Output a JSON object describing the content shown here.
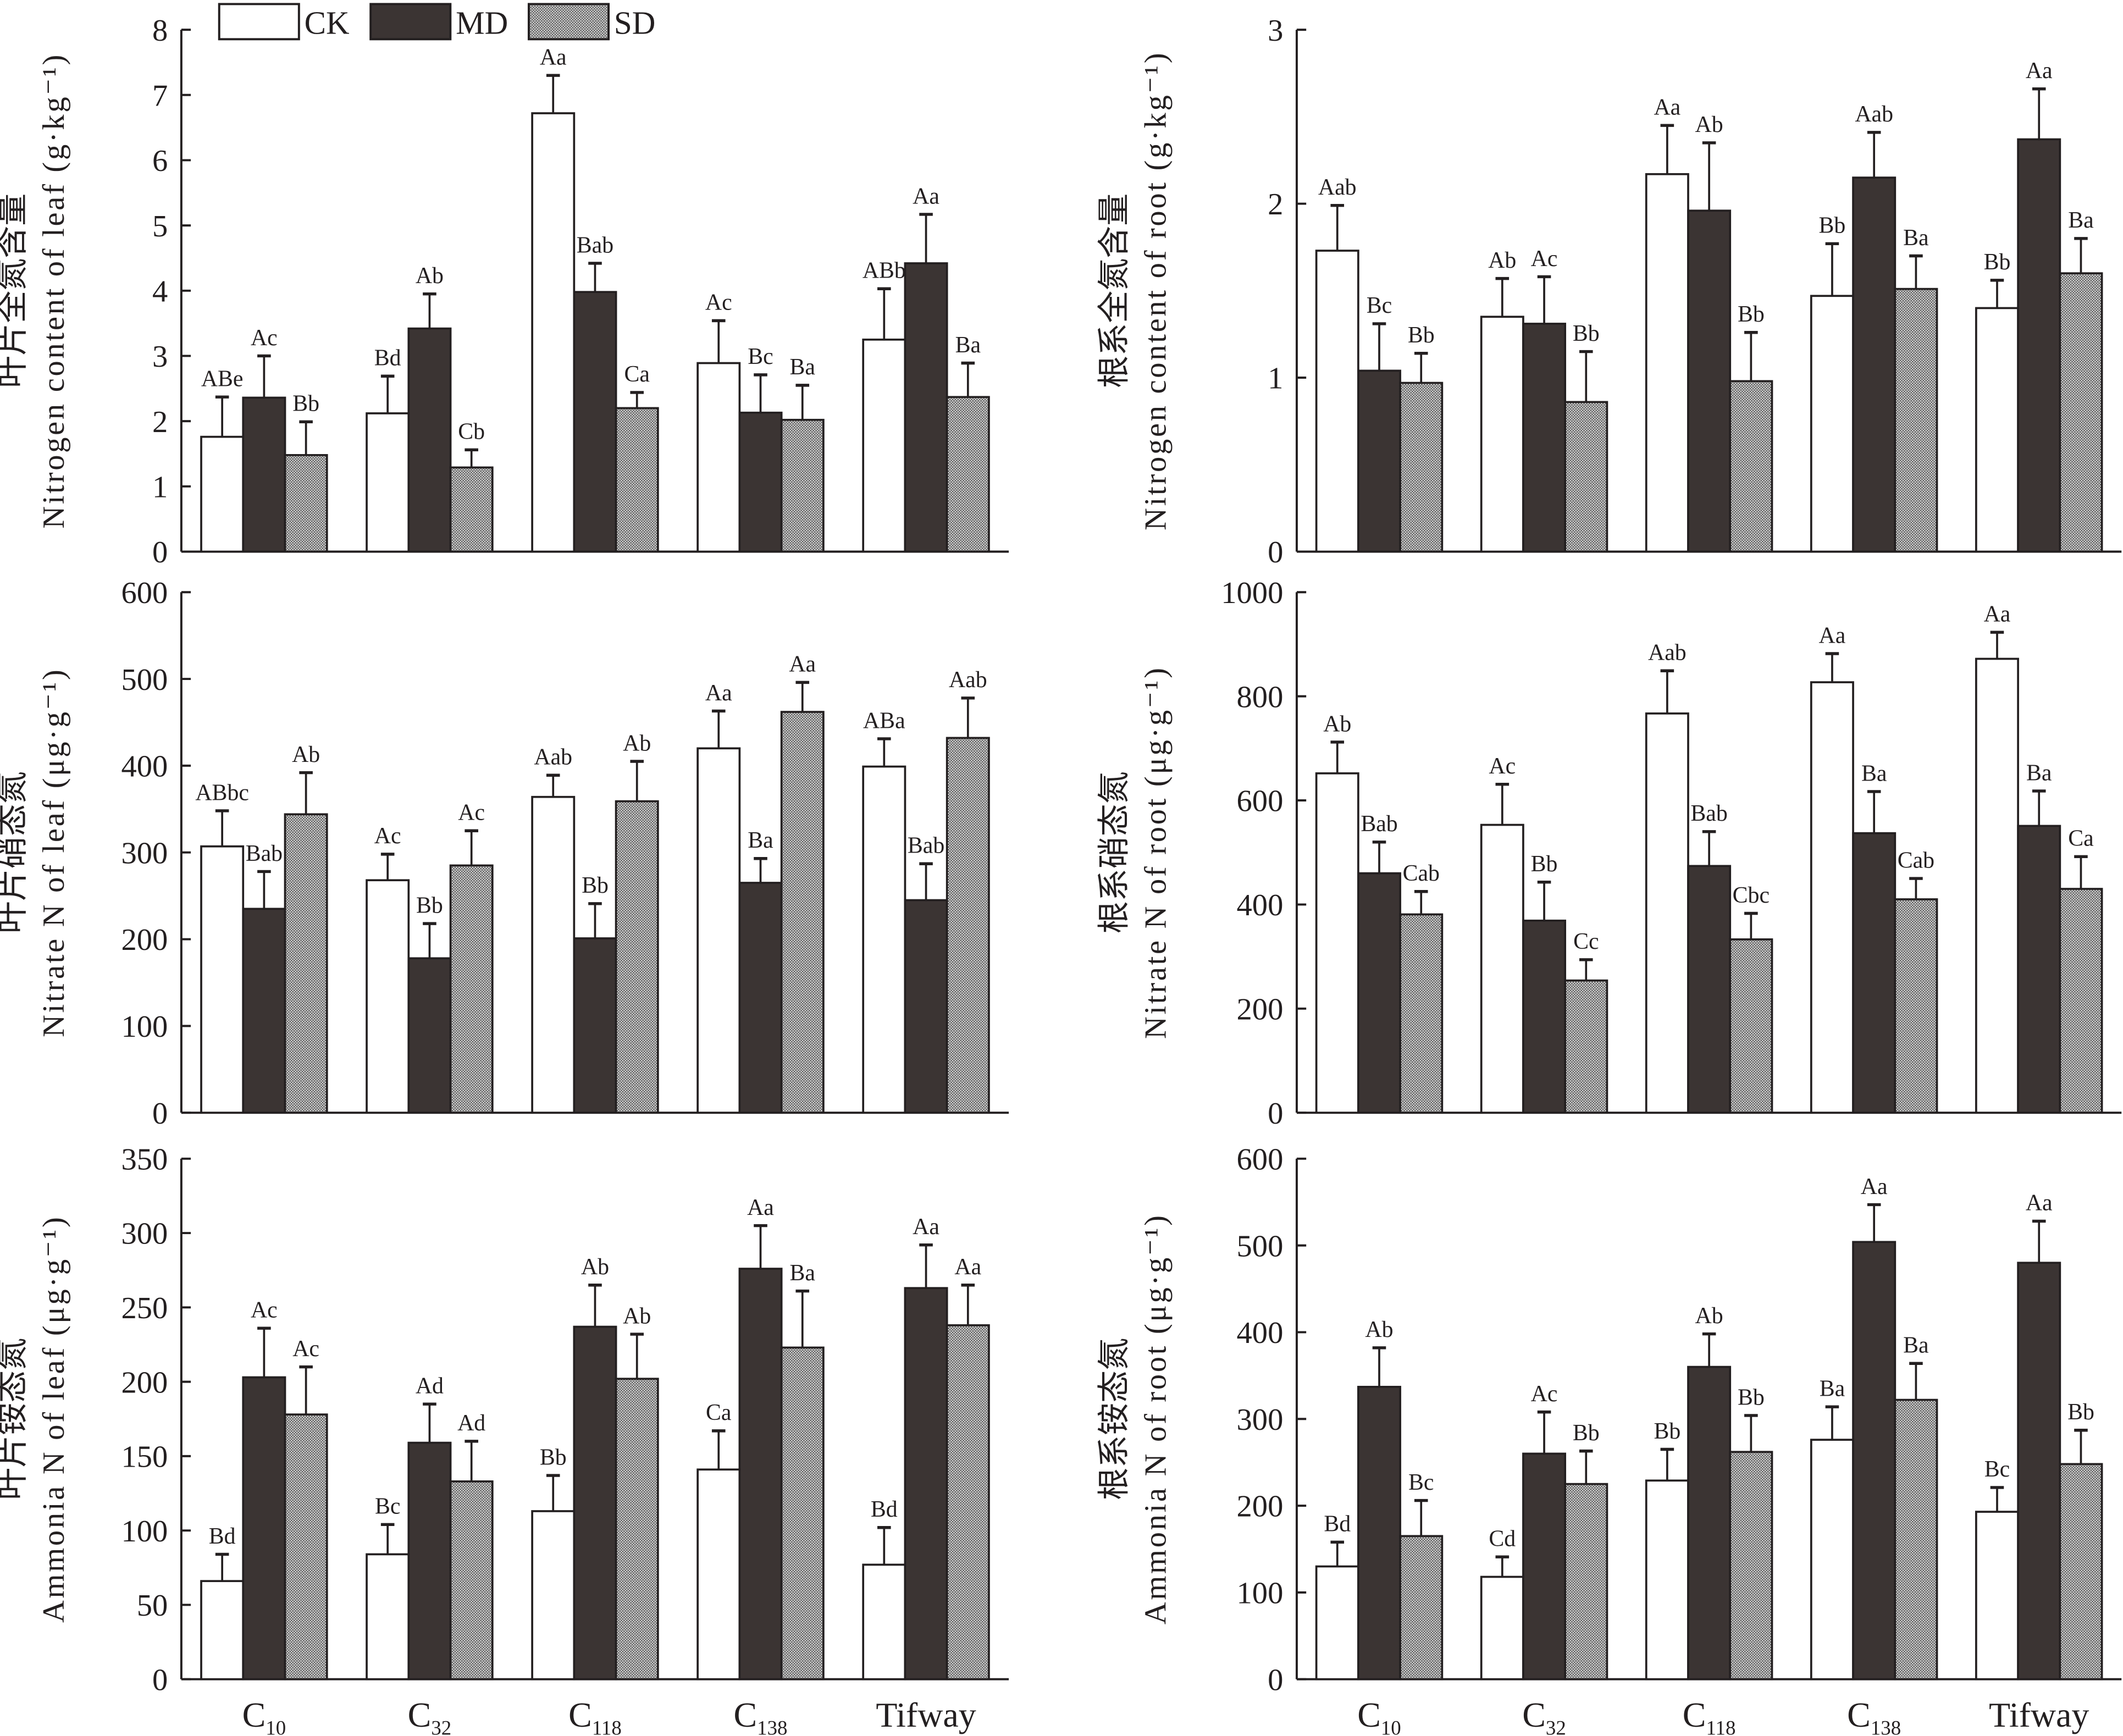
{
  "legend": [
    {
      "key": "CK",
      "label": "CK"
    },
    {
      "key": "MD",
      "label": "MD"
    },
    {
      "key": "SD",
      "label": "SD"
    }
  ],
  "colors": {
    "CK": "#ffffff",
    "MD": "#3b3433",
    "SD": "#9a9a9a",
    "ink": "#231f20"
  },
  "categories": [
    {
      "main": "C",
      "sub": "10"
    },
    {
      "main": "C",
      "sub": "32"
    },
    {
      "main": "C",
      "sub": "118"
    },
    {
      "main": "C",
      "sub": "138"
    },
    {
      "main": "Tifway",
      "sub": ""
    }
  ],
  "chart_data": [
    {
      "type": "bar",
      "id": "leaf-total-n",
      "ylabel_cn": "叶片全氮含量",
      "ylabel_en": "Nitrogen content of leaf (g·kg⁻¹)",
      "ylim": [
        0,
        8
      ],
      "yticks": [
        0,
        1,
        2,
        3,
        4,
        5,
        6,
        7,
        8
      ],
      "categories": [
        "C10",
        "C32",
        "C118",
        "C138",
        "Tifway"
      ],
      "series": [
        {
          "name": "CK",
          "values": [
            1.76,
            2.12,
            6.72,
            2.89,
            3.25
          ],
          "errors": [
            0.61,
            0.57,
            0.58,
            0.65,
            0.78
          ],
          "labels": [
            "ABe",
            "Bd",
            "Aa",
            "Ac",
            "ABb"
          ]
        },
        {
          "name": "MD",
          "values": [
            2.36,
            3.42,
            3.98,
            2.13,
            4.42
          ],
          "errors": [
            0.64,
            0.53,
            0.44,
            0.58,
            0.75
          ],
          "labels": [
            "Ac",
            "Ab",
            "Bab",
            "Bc",
            "Aa"
          ]
        },
        {
          "name": "SD",
          "values": [
            1.48,
            1.29,
            2.2,
            2.02,
            2.37
          ],
          "errors": [
            0.51,
            0.27,
            0.24,
            0.53,
            0.52
          ],
          "labels": [
            "Bb",
            "Cb",
            "Ca",
            "Ba",
            "Ba"
          ]
        }
      ]
    },
    {
      "type": "bar",
      "id": "root-total-n",
      "ylabel_cn": "根系全氮含量",
      "ylabel_en": "Nitrogen content of root (g·kg⁻¹)",
      "ylim": [
        0,
        3
      ],
      "yticks": [
        0,
        1,
        2,
        3
      ],
      "categories": [
        "C10",
        "C32",
        "C118",
        "C138",
        "Tifway"
      ],
      "series": [
        {
          "name": "CK",
          "values": [
            1.73,
            1.35,
            2.17,
            1.47,
            1.4
          ],
          "errors": [
            0.26,
            0.22,
            0.28,
            0.3,
            0.16
          ],
          "labels": [
            "Aab",
            "Ab",
            "Aa",
            "Bb",
            "Bb"
          ]
        },
        {
          "name": "MD",
          "values": [
            1.04,
            1.31,
            1.96,
            2.15,
            2.37
          ],
          "errors": [
            0.27,
            0.27,
            0.39,
            0.26,
            0.29
          ],
          "labels": [
            "Bc",
            "Ac",
            "Ab",
            "Aab",
            "Aa"
          ]
        },
        {
          "name": "SD",
          "values": [
            0.97,
            0.86,
            0.98,
            1.51,
            1.6
          ],
          "errors": [
            0.17,
            0.29,
            0.28,
            0.19,
            0.2
          ],
          "labels": [
            "Bb",
            "Bb",
            "Bb",
            "Ba",
            "Ba"
          ]
        }
      ]
    },
    {
      "type": "bar",
      "id": "leaf-nitrate-n",
      "ylabel_cn": "叶片硝态氮",
      "ylabel_en": "Nitrate N of leaf (μg·g⁻¹)",
      "ylim": [
        0,
        600
      ],
      "yticks": [
        0,
        100,
        200,
        300,
        400,
        500,
        600
      ],
      "categories": [
        "C10",
        "C32",
        "C118",
        "C138",
        "Tifway"
      ],
      "series": [
        {
          "name": "CK",
          "values": [
            307,
            268,
            364,
            420,
            399
          ],
          "errors": [
            41,
            30,
            25,
            43,
            32
          ],
          "labels": [
            "ABbc",
            "Ac",
            "Aab",
            "Aa",
            "ABa"
          ]
        },
        {
          "name": "MD",
          "values": [
            235,
            178,
            201,
            265,
            245
          ],
          "errors": [
            43,
            40,
            40,
            28,
            42
          ],
          "labels": [
            "Bab",
            "Bb",
            "Bb",
            "Ba",
            "Bab"
          ]
        },
        {
          "name": "SD",
          "values": [
            344,
            285,
            359,
            462,
            432
          ],
          "errors": [
            48,
            40,
            46,
            34,
            46
          ],
          "labels": [
            "Ab",
            "Ac",
            "Ab",
            "Aa",
            "Aab"
          ]
        }
      ]
    },
    {
      "type": "bar",
      "id": "root-nitrate-n",
      "ylabel_cn": "根系硝态氮",
      "ylabel_en": "Nitrate N of root (μg·g⁻¹)",
      "ylim": [
        0,
        1000
      ],
      "yticks": [
        0,
        200,
        400,
        600,
        800,
        1000
      ],
      "categories": [
        "C10",
        "C32",
        "C118",
        "C138",
        "Tifway"
      ],
      "series": [
        {
          "name": "CK",
          "values": [
            652,
            553,
            767,
            827,
            872
          ],
          "errors": [
            60,
            78,
            82,
            55,
            51
          ],
          "labels": [
            "Ab",
            "Ac",
            "Aab",
            "Aa",
            "Aa"
          ]
        },
        {
          "name": "MD",
          "values": [
            460,
            369,
            474,
            537,
            551
          ],
          "errors": [
            60,
            74,
            66,
            80,
            67
          ],
          "labels": [
            "Bab",
            "Bb",
            "Bab",
            "Ba",
            "Ba"
          ]
        },
        {
          "name": "SD",
          "values": [
            381,
            254,
            333,
            410,
            430
          ],
          "errors": [
            44,
            40,
            50,
            40,
            62
          ],
          "labels": [
            "Cab",
            "Cc",
            "Cbc",
            "Cab",
            "Ca"
          ]
        }
      ]
    },
    {
      "type": "bar",
      "id": "leaf-ammonia-n",
      "ylabel_cn": "叶片铵态氮",
      "ylabel_en": "Ammonia N of leaf (μg·g⁻¹)",
      "ylim": [
        0,
        350
      ],
      "yticks": [
        0,
        50,
        100,
        150,
        200,
        250,
        300,
        350
      ],
      "categories": [
        "C10",
        "C32",
        "C118",
        "C138",
        "Tifway"
      ],
      "series": [
        {
          "name": "CK",
          "values": [
            66,
            84,
            113,
            141,
            77
          ],
          "errors": [
            18,
            20,
            24,
            26,
            25
          ],
          "labels": [
            "Bd",
            "Bc",
            "Bb",
            "Ca",
            "Bd"
          ]
        },
        {
          "name": "MD",
          "values": [
            203,
            159,
            237,
            276,
            263
          ],
          "errors": [
            33,
            26,
            28,
            29,
            29
          ],
          "labels": [
            "Ac",
            "Ad",
            "Ab",
            "Aa",
            "Aa"
          ]
        },
        {
          "name": "SD",
          "values": [
            178,
            133,
            202,
            223,
            238
          ],
          "errors": [
            32,
            27,
            30,
            38,
            27
          ],
          "labels": [
            "Ac",
            "Ad",
            "Ab",
            "Ba",
            "Aa"
          ]
        }
      ]
    },
    {
      "type": "bar",
      "id": "root-ammonia-n",
      "ylabel_cn": "根系铵态氮",
      "ylabel_en": "Ammonia N of root (μg·g⁻¹)",
      "ylim": [
        0,
        600
      ],
      "yticks": [
        0,
        100,
        200,
        300,
        400,
        500,
        600
      ],
      "categories": [
        "C10",
        "C32",
        "C118",
        "C138",
        "Tifway"
      ],
      "series": [
        {
          "name": "CK",
          "values": [
            130,
            118,
            229,
            276,
            193
          ],
          "errors": [
            28,
            23,
            36,
            38,
            28
          ],
          "labels": [
            "Bd",
            "Cd",
            "Bb",
            "Ba",
            "Bc"
          ]
        },
        {
          "name": "MD",
          "values": [
            337,
            260,
            360,
            504,
            480
          ],
          "errors": [
            45,
            48,
            38,
            43,
            48
          ],
          "labels": [
            "Ab",
            "Ac",
            "Ab",
            "Aa",
            "Aa"
          ]
        },
        {
          "name": "SD",
          "values": [
            165,
            225,
            262,
            322,
            248
          ],
          "errors": [
            41,
            38,
            42,
            42,
            39
          ],
          "labels": [
            "Bc",
            "Bb",
            "Bb",
            "Ba",
            "Bb"
          ]
        }
      ]
    }
  ]
}
